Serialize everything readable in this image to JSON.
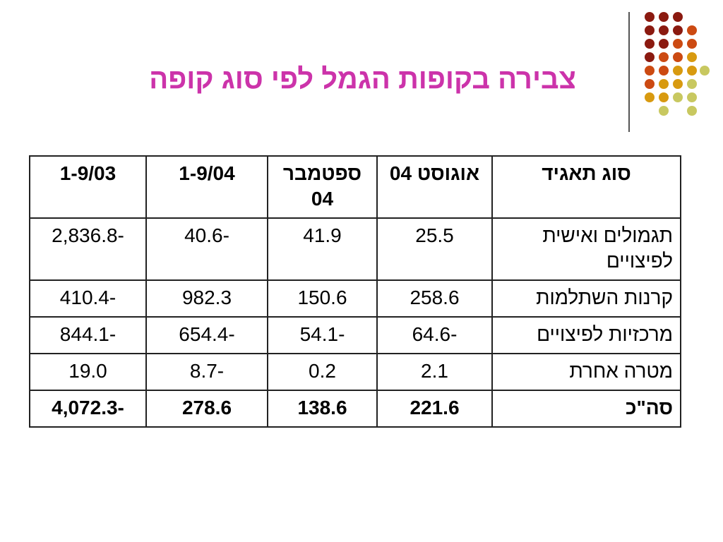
{
  "slide": {
    "title": "צבירה בקופות הגמל לפי סוג קופה"
  },
  "decoration": {
    "colors": [
      "#8b1a10",
      "#cc4a12",
      "#d89a10",
      "#c8c860"
    ]
  },
  "table": {
    "headers": [
      "1-9/03",
      "1-9/04",
      "ספטמבר 04",
      "אוגוסט 04",
      "סוג תאגיד"
    ],
    "rows": [
      [
        "2,836.8-",
        "40.6-",
        "41.9",
        "25.5",
        "תגמולים ואישית לפיצויים"
      ],
      [
        "410.4-",
        "982.3",
        "150.6",
        "258.6",
        "קרנות השתלמות"
      ],
      [
        "844.1-",
        "654.4-",
        "54.1-",
        "64.6-",
        "מרכזיות לפיצויים"
      ],
      [
        "19.0",
        "8.7-",
        "0.2",
        "2.1",
        "מטרה אחרת"
      ]
    ],
    "total": [
      "4,072.3-",
      "278.6",
      "138.6",
      "221.6",
      "סה\"כ"
    ]
  }
}
